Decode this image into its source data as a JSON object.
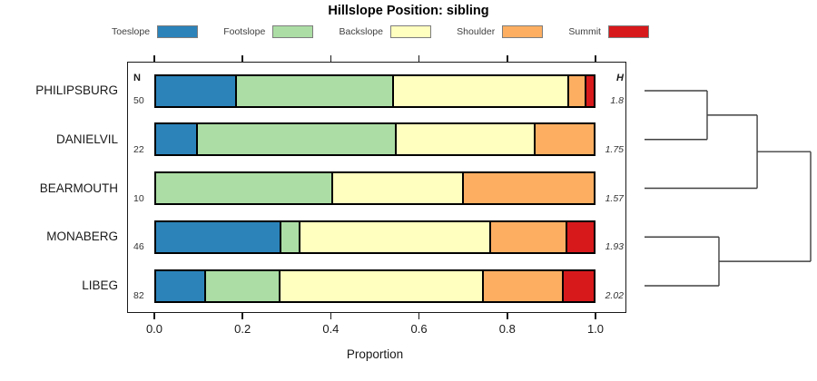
{
  "title": "Hillslope Position: sibling",
  "legend": {
    "items": [
      {
        "label": "Toeslope",
        "color": "#2B83BA"
      },
      {
        "label": "Footslope",
        "color": "#ABDDA4"
      },
      {
        "label": "Backslope",
        "color": "#FFFFBF"
      },
      {
        "label": "Shoulder",
        "color": "#FDAE61"
      },
      {
        "label": "Summit",
        "color": "#D7191C"
      }
    ]
  },
  "table": {
    "n_header": "N",
    "h_header": "H"
  },
  "axis": {
    "label": "Proportion",
    "ticks": [
      {
        "label": "0.0",
        "value": 0.0
      },
      {
        "label": "0.2",
        "value": 0.2
      },
      {
        "label": "0.4",
        "value": 0.4
      },
      {
        "label": "0.6",
        "value": 0.6
      },
      {
        "label": "0.8",
        "value": 0.8
      },
      {
        "label": "1.0",
        "value": 1.0
      }
    ]
  },
  "chart_data": {
    "type": "bar",
    "stacked": true,
    "orientation": "horizontal",
    "title": "Hillslope Position: sibling",
    "xlabel": "Proportion",
    "xlim": [
      0,
      1
    ],
    "grid": false,
    "legend_position": "top",
    "categories": [
      "PHILIPSBURG",
      "DANIELVIL",
      "BEARMOUTH",
      "MONABERG",
      "LIBEG"
    ],
    "n_values": [
      50,
      22,
      10,
      46,
      82
    ],
    "shannon_h_values": [
      "1.8",
      "1.75",
      "1.57",
      "1.93",
      "2.02"
    ],
    "series": [
      {
        "name": "Toeslope",
        "color": "#2B83BA",
        "values": [
          0.18,
          0.091,
          0.0,
          0.283,
          0.11
        ]
      },
      {
        "name": "Footslope",
        "color": "#ABDDA4",
        "values": [
          0.36,
          0.455,
          0.4,
          0.043,
          0.171
        ]
      },
      {
        "name": "Backslope",
        "color": "#FFFFBF",
        "values": [
          0.4,
          0.318,
          0.3,
          0.435,
          0.463
        ]
      },
      {
        "name": "Shoulder",
        "color": "#FDAE61",
        "values": [
          0.04,
          0.136,
          0.3,
          0.174,
          0.183
        ]
      },
      {
        "name": "Summit",
        "color": "#D7191C",
        "values": [
          0.02,
          0.0,
          0.0,
          0.065,
          0.073
        ]
      }
    ],
    "dendrogram": {
      "orientation": "right",
      "tree": {
        "height": 1.0,
        "children": [
          {
            "height": 0.678,
            "children": [
              {
                "height": 0.377,
                "children": [
                  {
                    "leaf": 0
                  },
                  {
                    "leaf": 1
                  }
                ]
              },
              {
                "leaf": 2
              }
            ]
          },
          {
            "height": 0.448,
            "children": [
              {
                "leaf": 3
              },
              {
                "leaf": 4
              }
            ]
          }
        ]
      }
    }
  }
}
